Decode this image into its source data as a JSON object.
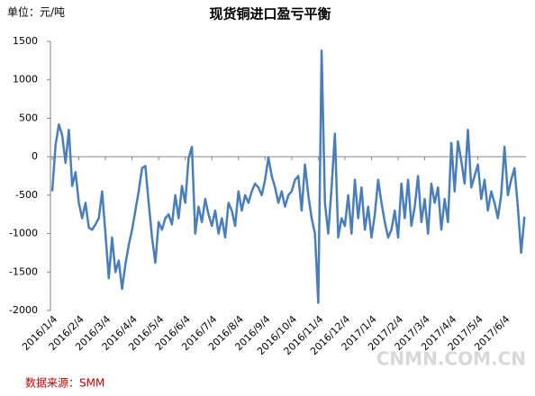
{
  "chart_data": {
    "type": "line",
    "title": "现货铜进口盈亏平衡",
    "unit_label": "单位：元/吨",
    "source": "数据来源：SMM",
    "watermark": "CNMN.COM.CN",
    "categories": [
      "2016/1/4",
      null,
      null,
      null,
      null,
      null,
      null,
      null,
      "2016/2/4",
      null,
      null,
      null,
      null,
      null,
      null,
      null,
      "2016/3/4",
      null,
      null,
      null,
      null,
      null,
      null,
      null,
      "2016/4/4",
      null,
      null,
      null,
      null,
      null,
      null,
      null,
      "2016/5/4",
      null,
      null,
      null,
      null,
      null,
      null,
      null,
      "2016/6/4",
      null,
      null,
      null,
      null,
      null,
      null,
      null,
      "2016/7/4",
      null,
      null,
      null,
      null,
      null,
      null,
      null,
      "2016/8/4",
      null,
      null,
      null,
      null,
      null,
      null,
      null,
      "2016/9/4",
      null,
      null,
      null,
      null,
      null,
      null,
      null,
      "2016/10/4",
      null,
      null,
      null,
      null,
      null,
      null,
      null,
      "2016/11/4",
      null,
      null,
      null,
      null,
      null,
      null,
      null,
      "2016/12/4",
      null,
      null,
      null,
      null,
      null,
      null,
      null,
      "2017/1/4",
      null,
      null,
      null,
      null,
      null,
      null,
      null,
      "2017/2/4",
      null,
      null,
      null,
      null,
      null,
      null,
      null,
      "2017/3/4",
      null,
      null,
      null,
      null,
      null,
      null,
      null,
      "2017/4/4",
      null,
      null,
      null,
      null,
      null,
      null,
      null,
      "2017/5/4",
      null,
      null,
      null,
      null,
      null,
      null,
      null,
      "2017/6/4",
      null,
      null,
      null,
      null,
      null,
      null
    ],
    "series": [
      {
        "name": "现货铜进口盈亏",
        "color": "#4a7ebb",
        "values": [
          -450,
          150,
          420,
          280,
          -80,
          350,
          -380,
          -200,
          -600,
          -800,
          -600,
          -920,
          -950,
          -880,
          -800,
          -450,
          -1000,
          -1580,
          -1050,
          -1500,
          -1350,
          -1720,
          -1400,
          -1150,
          -950,
          -700,
          -450,
          -150,
          -120,
          -600,
          -1050,
          -1380,
          -850,
          -950,
          -800,
          -750,
          -880,
          -500,
          -800,
          -380,
          -600,
          -20,
          130,
          -1000,
          -650,
          -850,
          -550,
          -750,
          -900,
          -700,
          -1000,
          -800,
          -1050,
          -600,
          -700,
          -900,
          -450,
          -700,
          -500,
          -600,
          -450,
          -350,
          -400,
          -500,
          -300,
          -10,
          -250,
          -400,
          -600,
          -450,
          -650,
          -500,
          -450,
          -300,
          -250,
          -700,
          -100,
          -500,
          -800,
          -1000,
          -1900,
          1380,
          -600,
          -1000,
          -400,
          300,
          -1050,
          -800,
          -900,
          -500,
          -1000,
          -300,
          -800,
          -400,
          -950,
          -650,
          -1050,
          -750,
          -300,
          -600,
          -850,
          -1050,
          -950,
          -700,
          -1050,
          -350,
          -800,
          -300,
          -900,
          -650,
          -250,
          -850,
          -550,
          -1000,
          -350,
          -600,
          -400,
          -950,
          -550,
          -850,
          180,
          -450,
          200,
          -50,
          -350,
          350,
          -400,
          -250,
          -100,
          -550,
          -300,
          -700,
          -450,
          -600,
          -800,
          -500,
          130,
          -500,
          -300,
          -150,
          -650,
          -1250,
          -780
        ]
      }
    ],
    "ylim": [
      -2000,
      1500
    ],
    "yticks": [
      -2000,
      -1500,
      -1000,
      -500,
      0,
      500,
      1000,
      1500
    ],
    "grid": false
  }
}
